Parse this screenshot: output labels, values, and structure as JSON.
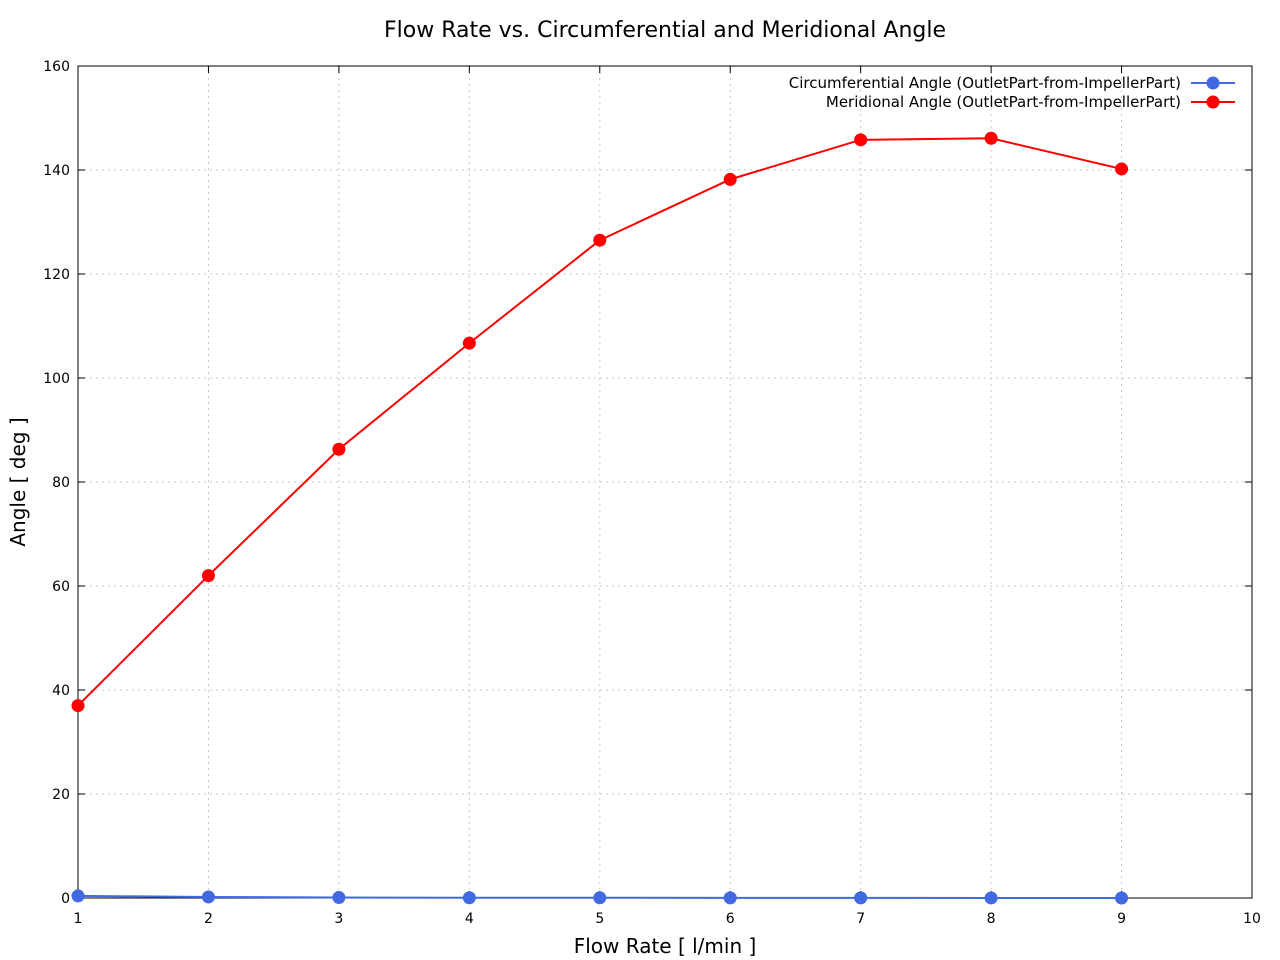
{
  "chart_data": {
    "type": "line",
    "title": "Flow Rate vs. Circumferential and Meridional Angle",
    "xlabel": "Flow Rate [ l/min ]",
    "ylabel": "Angle [ deg ]",
    "xlim": [
      1,
      10
    ],
    "ylim": [
      0,
      160
    ],
    "xticks": [
      1,
      2,
      3,
      4,
      5,
      6,
      7,
      8,
      9,
      10
    ],
    "yticks": [
      0,
      20,
      40,
      60,
      80,
      100,
      120,
      140,
      160
    ],
    "grid": true,
    "legend_position": "top-right",
    "x": [
      1,
      2,
      3,
      4,
      5,
      6,
      7,
      8,
      9
    ],
    "series": [
      {
        "name": "Circumferential Angle (OutletPart-from-ImpellerPart)",
        "color": "#4169e1",
        "marker": "circle",
        "values": [
          0.4,
          0.2,
          0.1,
          0.05,
          0.04,
          0.03,
          0.02,
          0.01,
          0.0
        ]
      },
      {
        "name": "Meridional Angle (OutletPart-from-ImpellerPart)",
        "color": "#ff0000",
        "marker": "circle",
        "values": [
          37,
          62,
          86.3,
          106.7,
          126.5,
          138.2,
          145.8,
          146.1,
          140.2
        ]
      }
    ]
  }
}
